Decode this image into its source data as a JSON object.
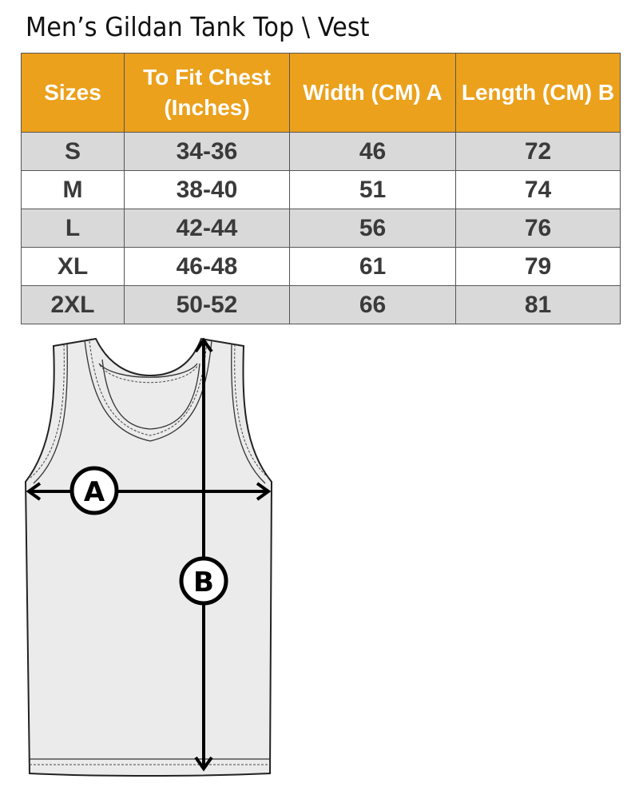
{
  "title": "Men’s Gildan Tank Top \\ Vest",
  "colors": {
    "header": "#eba11c",
    "row_alt": "#d9d9d9",
    "garment": "#ebebeb"
  },
  "table": {
    "headers": [
      "Sizes",
      "To Fit Chest (Inches)",
      "Width (CM) A",
      "Length  (CM) B"
    ],
    "rows": [
      [
        "S",
        "34-36",
        "46",
        "72"
      ],
      [
        "M",
        "38-40",
        "51",
        "74"
      ],
      [
        "L",
        "42-44",
        "56",
        "76"
      ],
      [
        "XL",
        "46-48",
        "61",
        "79"
      ],
      [
        "2XL",
        "50-52",
        "66",
        "81"
      ]
    ]
  },
  "diagram": {
    "label_a": "A",
    "label_b": "B"
  }
}
